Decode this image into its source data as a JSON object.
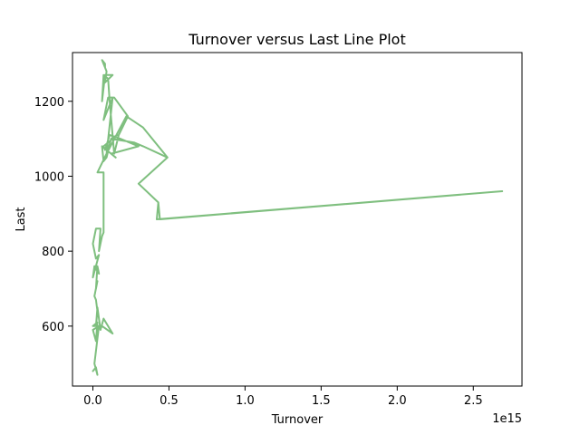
{
  "chart_data": {
    "type": "line",
    "title": "Turnover versus Last Line Plot",
    "xlabel": "Turnover",
    "ylabel": "Last",
    "x_offset_label": "1e15",
    "x_scale": 1000000000000000.0,
    "xlim": [
      -0.134,
      2.82
    ],
    "ylim": [
      440,
      1330
    ],
    "x_ticks": [
      0.0,
      0.5,
      1.0,
      1.5,
      2.0,
      2.5
    ],
    "x_tick_labels": [
      "0.0",
      "0.5",
      "1.0",
      "1.5",
      "2.0",
      "2.5"
    ],
    "y_ticks": [
      600,
      800,
      1000,
      1200
    ],
    "y_tick_labels": [
      "600",
      "800",
      "1000",
      "1200"
    ],
    "grid": false,
    "line_color": "#7fbf7f",
    "series": [
      {
        "x": [
          0.0,
          0.02,
          0.03,
          0.01,
          0.04,
          0.0,
          0.02,
          0.03,
          0.0,
          0.06,
          0.13,
          0.07,
          0.05,
          0.03,
          0.02,
          0.03,
          0.02,
          0.01,
          0.03,
          0.02,
          0.03,
          0.04,
          0.01,
          0.0,
          0.04,
          0.02,
          0.0,
          0.02,
          0.05,
          0.04,
          0.06,
          0.07,
          0.07,
          0.07,
          0.03,
          0.09,
          0.1,
          0.12,
          0.09,
          0.07,
          0.06,
          0.12,
          0.15,
          0.12,
          0.3,
          0.18,
          0.11,
          0.08,
          0.07,
          0.16,
          0.12,
          0.27,
          0.33,
          0.49,
          0.3,
          0.43,
          0.44,
          2.69,
          0.42,
          0.43,
          0.3,
          0.49,
          0.33,
          0.22,
          0.09,
          0.13,
          0.07,
          0.1,
          0.14,
          0.23,
          0.17,
          0.14,
          0.11,
          0.1,
          0.07,
          0.06,
          0.08,
          0.07,
          0.08,
          0.13,
          0.08,
          0.09,
          0.08,
          0.08,
          0.06,
          0.08
        ],
        "y": [
          480,
          490,
          470,
          500,
          600,
          590,
          560,
          610,
          600,
          600,
          580,
          620,
          590,
          650,
          600,
          640,
          670,
          680,
          720,
          700,
          760,
          740,
          760,
          730,
          790,
          780,
          820,
          860,
          860,
          800,
          840,
          850,
          1000,
          1010,
          1010,
          1060,
          1070,
          1100,
          1050,
          1040,
          1080,
          1060,
          1050,
          1060,
          1080,
          1100,
          1110,
          1070,
          1080,
          1110,
          1100,
          1090,
          1080,
          1050,
          980,
          930,
          885,
          960,
          885,
          930,
          980,
          1050,
          1130,
          1160,
          1060,
          1210,
          1150,
          1210,
          1210,
          1160,
          1110,
          1060,
          1200,
          1260,
          1270,
          1200,
          1270,
          1260,
          1270,
          1270,
          1250,
          1280,
          1290,
          1300,
          1310,
          1290
        ]
      }
    ]
  }
}
